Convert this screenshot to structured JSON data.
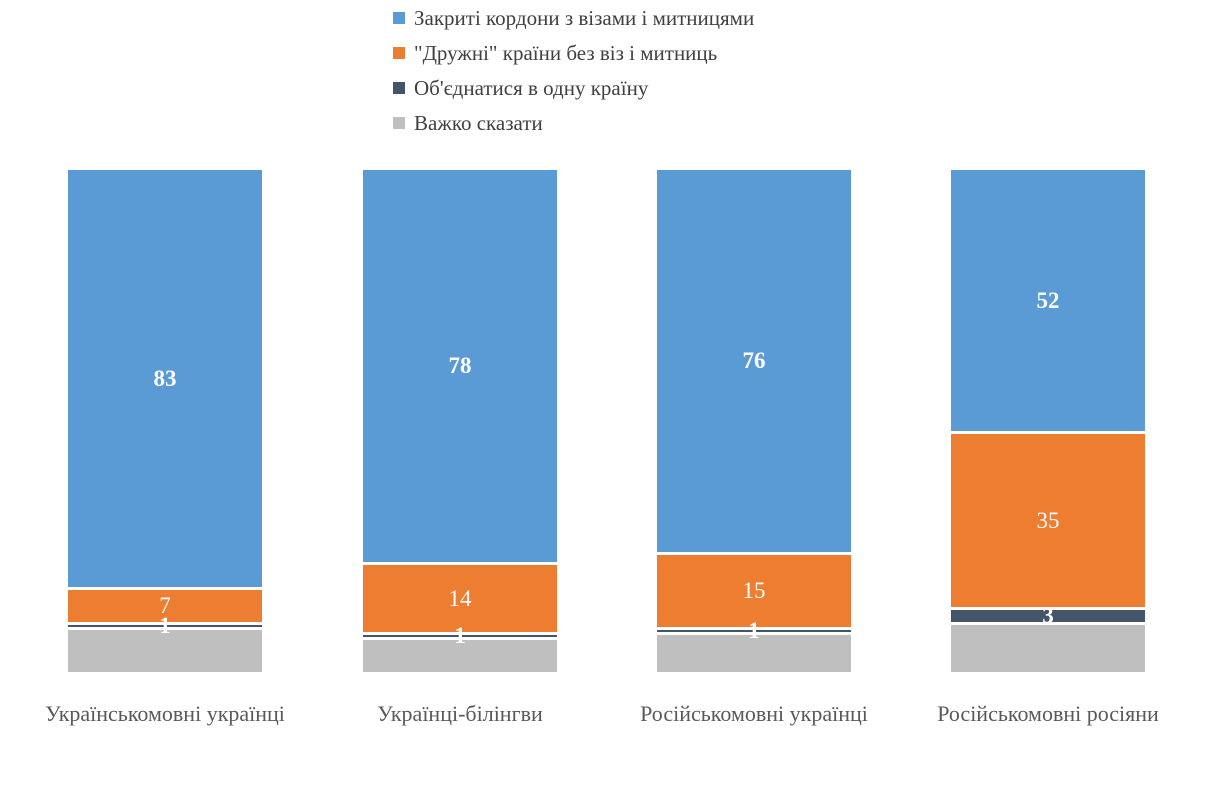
{
  "chart_data": {
    "type": "bar",
    "stacked": true,
    "orientation": "vertical",
    "title": "",
    "xlabel": "",
    "ylabel": "",
    "axis_max": 100,
    "gridlines": false,
    "legend_position": "top-left",
    "value_label_color": "#FFFFFF",
    "category_label_color": "#595959",
    "legend_text_color": "#404040",
    "background_color": "#FFFFFF",
    "categories": [
      "Українськомовні українці",
      "Українці-білінгви",
      "Російськомовні українці",
      "Російськомовні росіяни"
    ],
    "series": [
      {
        "name": "Закриті кордони з візами і митницями",
        "color": "#5B9BD5",
        "values": [
          83,
          78,
          76,
          52
        ],
        "show_labels": true,
        "label_bold": true
      },
      {
        "name": "\"Дружні\" країни без віз і митниць",
        "color": "#ED7D31",
        "values": [
          7,
          14,
          15,
          35
        ],
        "show_labels": true,
        "label_bold": false
      },
      {
        "name": "Об'єднатися в одну країну",
        "color": "#44546A",
        "values": [
          1,
          1,
          1,
          3
        ],
        "show_labels": true,
        "label_bold": true
      },
      {
        "name": "Важко сказати",
        "color": "#BFBFBF",
        "values": [
          9,
          7,
          8,
          10
        ],
        "show_labels": false,
        "label_bold": false
      }
    ]
  }
}
